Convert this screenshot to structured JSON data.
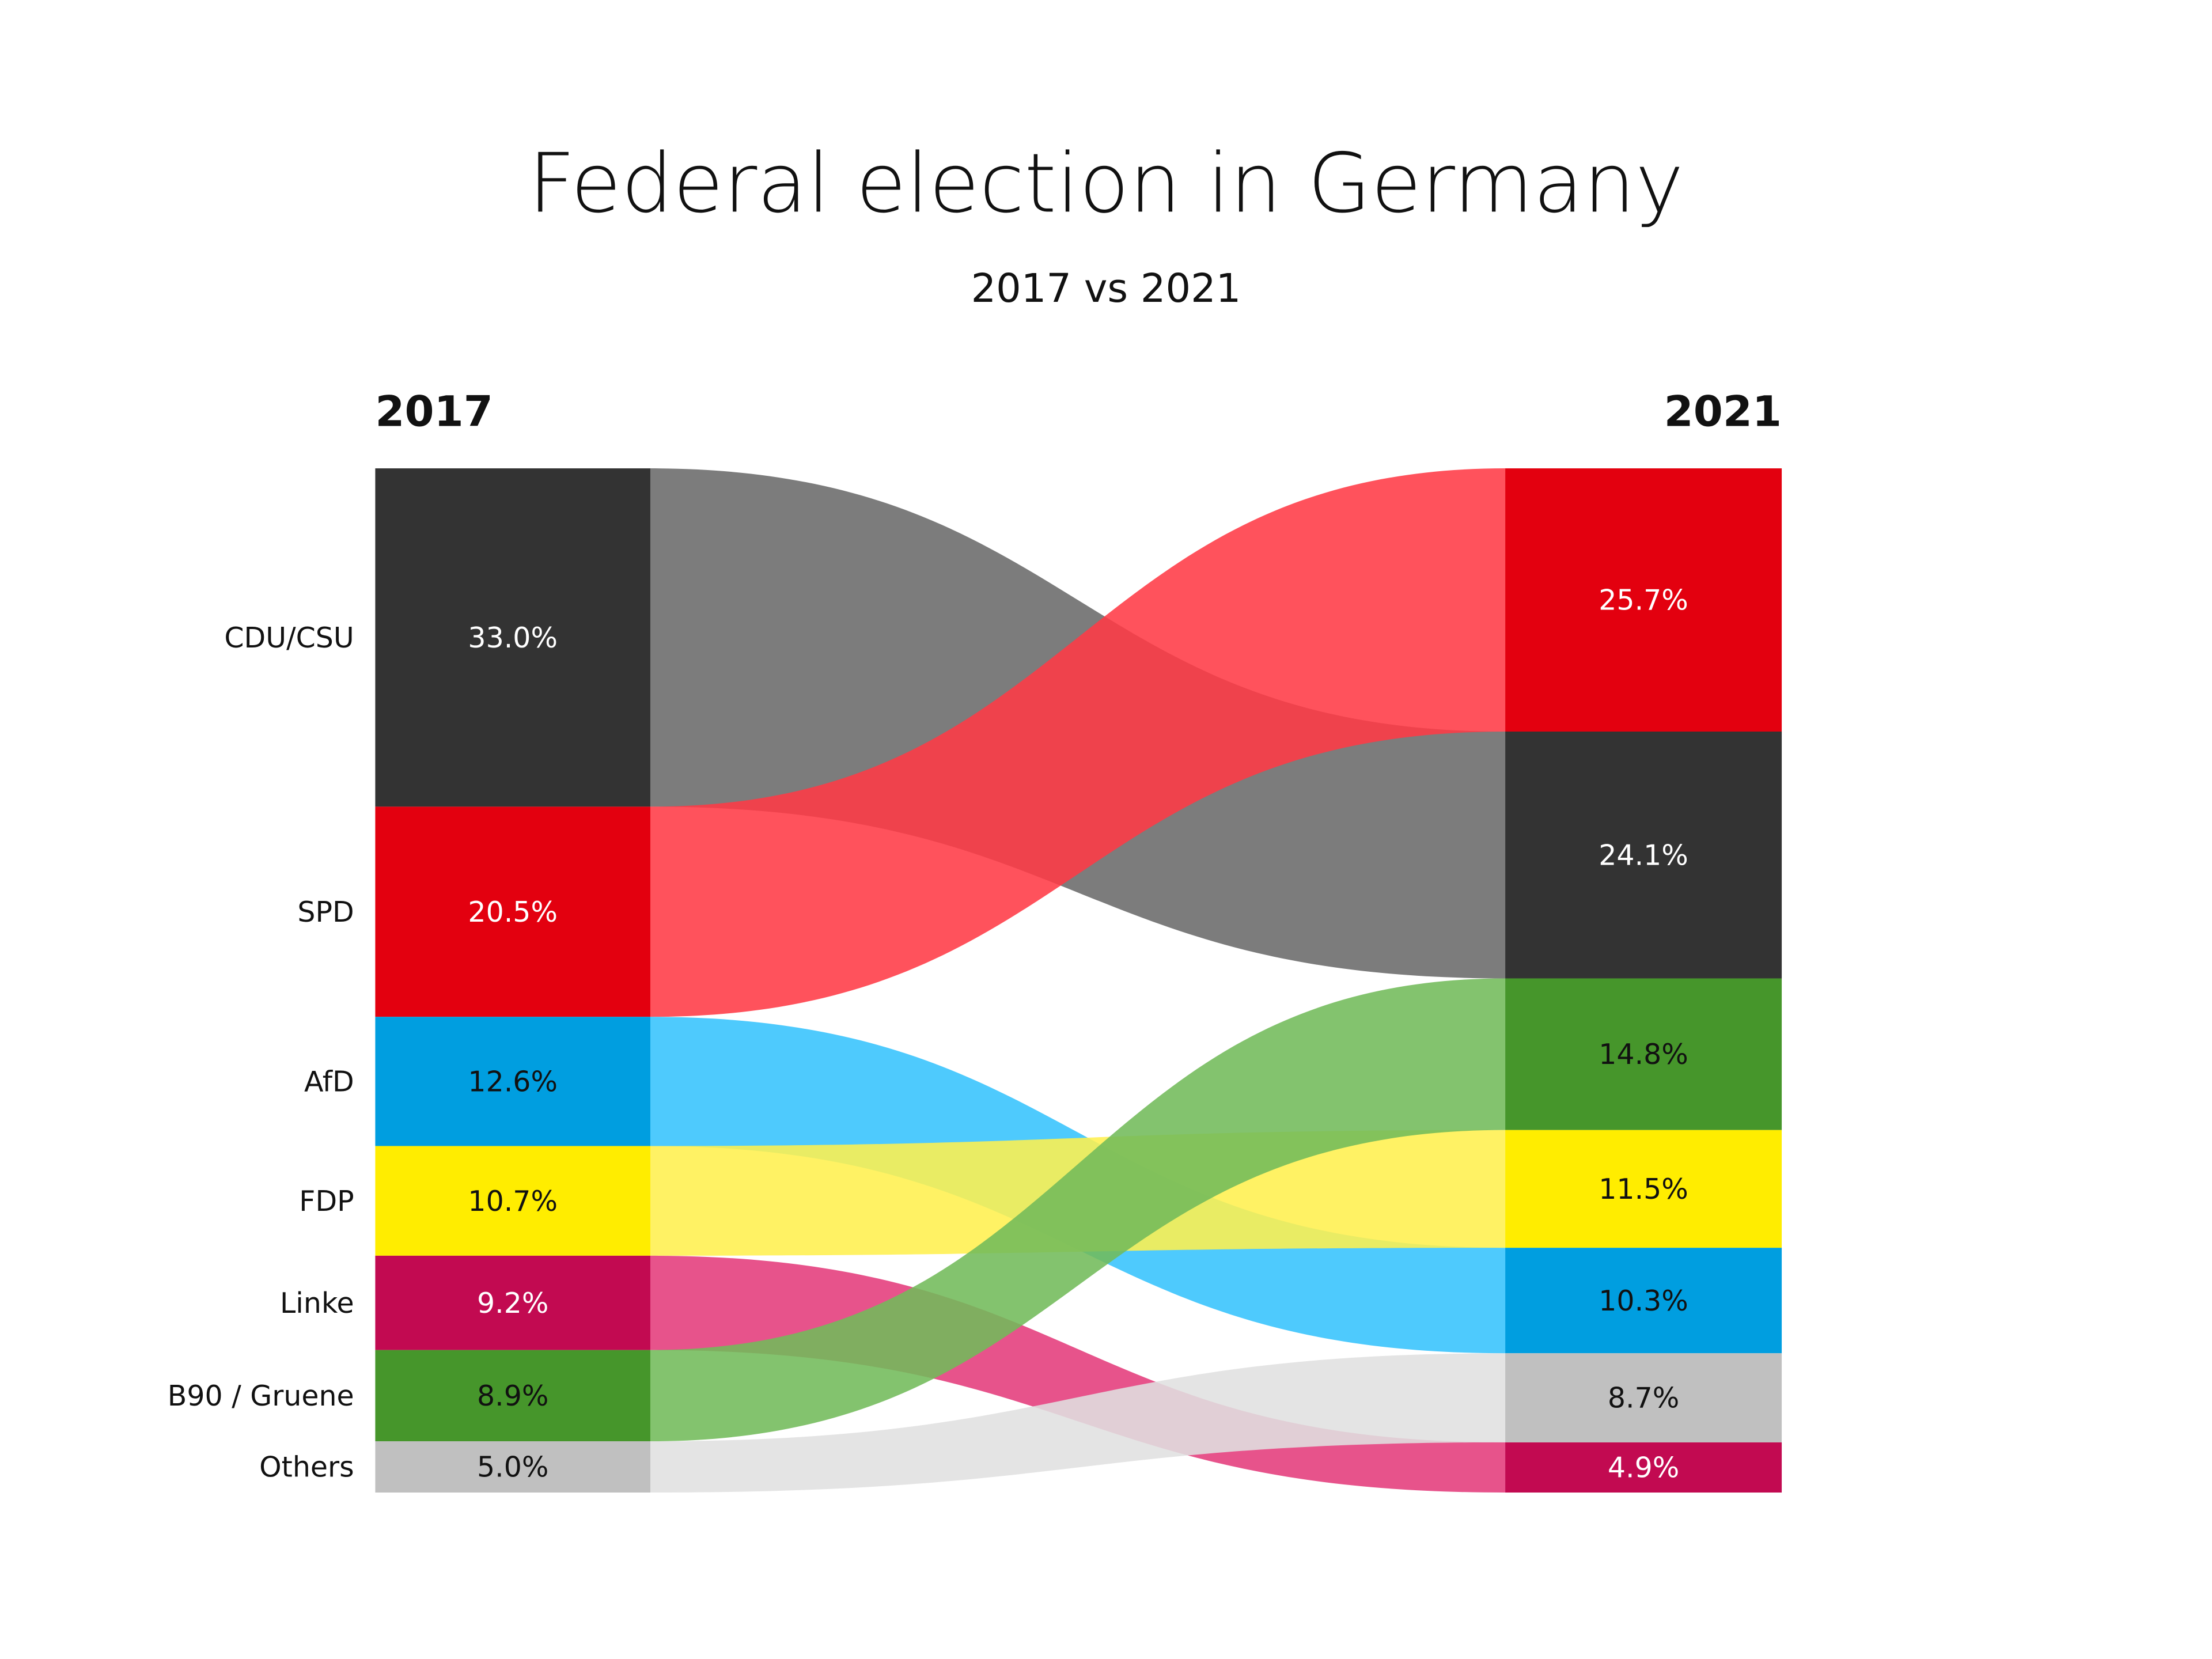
{
  "chart_data": {
    "type": "sankey",
    "title": "Federal election in Germany",
    "subtitle": "2017 vs 2021",
    "left_label": "2017",
    "right_label": "2021",
    "parties": [
      {
        "name": "CDU/CSU",
        "v2017": 33.0,
        "v2021": 24.1,
        "label2017": "33.0%",
        "label2021": "24.1%",
        "color": "#333333",
        "flow_color": "#6a6a6a",
        "text_color": "#ffffff"
      },
      {
        "name": "SPD",
        "v2017": 20.5,
        "v2021": 25.7,
        "label2017": "20.5%",
        "label2021": "25.7%",
        "color": "#e3000f",
        "flow_color": "#ff3a46",
        "text_color": "#ffffff"
      },
      {
        "name": "AfD",
        "v2017": 12.6,
        "v2021": 10.3,
        "label2017": "12.6%",
        "label2021": "10.3%",
        "color": "#009ee0",
        "flow_color": "#35c3fd",
        "text_color": "#111111"
      },
      {
        "name": "FDP",
        "v2017": 10.7,
        "v2021": 11.5,
        "label2017": "10.7%",
        "label2021": "11.5%",
        "color": "#ffed00",
        "flow_color": "#fff04f",
        "text_color": "#111111"
      },
      {
        "name": "Linke",
        "v2017": 9.2,
        "v2021": 4.9,
        "label2017": "9.2%",
        "label2021": "4.9%",
        "color": "#c20a51",
        "flow_color": "#e43b7b",
        "text_color": "#ffffff"
      },
      {
        "name": "B90 / Gruene",
        "v2017": 8.9,
        "v2021": 14.8,
        "label2017": "8.9%",
        "label2021": "14.8%",
        "color": "#46962b",
        "flow_color": "#72bb5a",
        "text_color": "#111111"
      },
      {
        "name": "Others",
        "v2017": 5.0,
        "v2021": 8.7,
        "label2017": "5.0%",
        "label2021": "8.7%",
        "color": "#c0c0c0",
        "flow_color": "#e0e0e0",
        "text_color": "#111111"
      }
    ],
    "order2021": [
      "SPD",
      "CDU/CSU",
      "B90 / Gruene",
      "FDP",
      "AfD",
      "Others",
      "Linke"
    ]
  }
}
